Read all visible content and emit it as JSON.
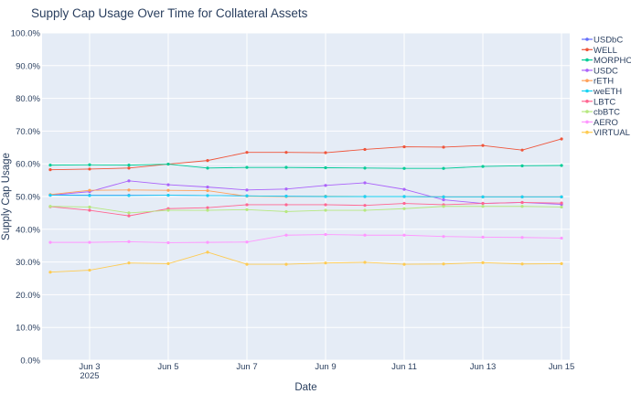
{
  "chart_data": {
    "type": "line",
    "title": "Supply Cap Usage Over Time for Collateral Assets",
    "xlabel": "Date",
    "ylabel": "Supply Cap Usage",
    "x": [
      "2025-06-02",
      "2025-06-03",
      "2025-06-04",
      "2025-06-05",
      "2025-06-06",
      "2025-06-07",
      "2025-06-08",
      "2025-06-09",
      "2025-06-10",
      "2025-06-11",
      "2025-06-12",
      "2025-06-13",
      "2025-06-14",
      "2025-06-15"
    ],
    "x_ticks": [
      {
        "date": "2025-06-03",
        "label": "Jun 3",
        "sublabel": "2025"
      },
      {
        "date": "2025-06-05",
        "label": "Jun 5",
        "sublabel": ""
      },
      {
        "date": "2025-06-07",
        "label": "Jun 7",
        "sublabel": ""
      },
      {
        "date": "2025-06-09",
        "label": "Jun 9",
        "sublabel": ""
      },
      {
        "date": "2025-06-11",
        "label": "Jun 11",
        "sublabel": ""
      },
      {
        "date": "2025-06-13",
        "label": "Jun 13",
        "sublabel": ""
      },
      {
        "date": "2025-06-15",
        "label": "Jun 15",
        "sublabel": ""
      }
    ],
    "xlim": [
      "2025-06-01T19:00",
      "2025-06-15T05:00"
    ],
    "ylim": [
      0,
      100
    ],
    "y_ticks": [
      0,
      10,
      20,
      30,
      40,
      50,
      60,
      70,
      80,
      90,
      100
    ],
    "y_tick_format": "%",
    "grid": true,
    "legend": "right",
    "background": "#E5ECF6",
    "series": [
      {
        "name": "USDbC",
        "color": "#636EFA",
        "values": [
          50.5,
          50.4,
          50.4,
          50.4,
          50.3,
          50.2,
          50.1,
          50.0,
          50.0,
          50.0,
          49.9,
          49.9,
          49.9,
          49.9
        ]
      },
      {
        "name": "WELL",
        "color": "#EF553B",
        "values": [
          58.2,
          58.4,
          58.7,
          59.9,
          61.0,
          63.5,
          63.5,
          63.4,
          64.4,
          65.2,
          65.1,
          65.6,
          64.2,
          67.6
        ]
      },
      {
        "name": "MORPHO",
        "color": "#00CC96",
        "values": [
          59.6,
          59.7,
          59.6,
          59.9,
          58.7,
          58.9,
          58.9,
          58.8,
          58.7,
          58.6,
          58.6,
          59.2,
          59.4,
          59.5
        ]
      },
      {
        "name": "USDC",
        "color": "#AB63FA",
        "values": [
          50.4,
          51.5,
          54.8,
          53.6,
          52.9,
          52.0,
          52.3,
          53.4,
          54.2,
          52.2,
          49.0,
          47.9,
          48.2,
          47.6
        ]
      },
      {
        "name": "rETH",
        "color": "#FFA15A",
        "values": [
          50.6,
          51.9,
          52.0,
          51.9,
          51.8,
          50.1,
          50.0,
          50.1,
          50.0,
          50.0,
          49.9,
          49.9,
          49.9,
          49.9
        ]
      },
      {
        "name": "weETH",
        "color": "#19D3F3",
        "values": [
          50.4,
          50.3,
          50.3,
          50.4,
          50.3,
          50.2,
          50.1,
          50.0,
          50.0,
          50.0,
          49.9,
          49.9,
          49.9,
          49.9
        ]
      },
      {
        "name": "LBTC",
        "color": "#FF6692",
        "values": [
          46.9,
          45.8,
          44.1,
          46.3,
          46.6,
          47.5,
          47.5,
          47.5,
          47.3,
          47.9,
          47.5,
          47.9,
          48.2,
          48.0
        ]
      },
      {
        "name": "cbBTC",
        "color": "#B6E880",
        "values": [
          47.0,
          46.8,
          45.0,
          45.8,
          45.8,
          46.0,
          45.4,
          45.8,
          45.8,
          46.3,
          47.0,
          47.0,
          47.0,
          46.8
        ]
      },
      {
        "name": "AERO",
        "color": "#FF97FF",
        "values": [
          36.0,
          36.0,
          36.2,
          35.9,
          36.0,
          36.1,
          38.2,
          38.4,
          38.2,
          38.2,
          37.8,
          37.6,
          37.5,
          37.3
        ]
      },
      {
        "name": "VIRTUAL",
        "color": "#FECB52",
        "values": [
          26.9,
          27.5,
          29.7,
          29.5,
          33.0,
          29.3,
          29.3,
          29.7,
          29.9,
          29.3,
          29.4,
          29.8,
          29.4,
          29.5
        ]
      }
    ]
  }
}
